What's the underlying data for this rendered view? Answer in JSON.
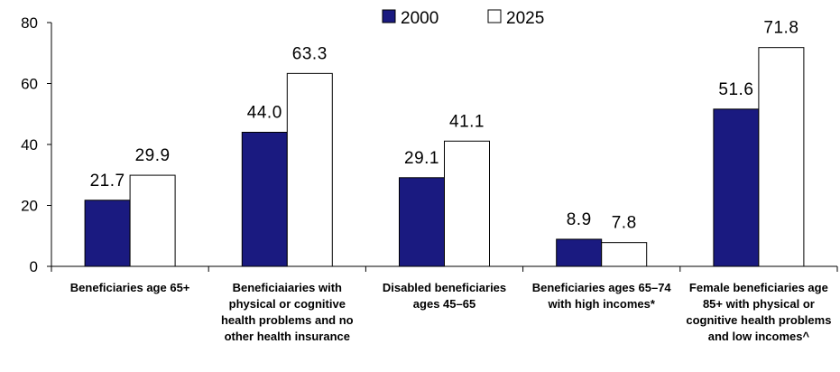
{
  "chart_data": {
    "type": "bar",
    "title": "",
    "xlabel": "",
    "ylabel": "",
    "ylim": [
      0,
      80
    ],
    "yticks": [
      0,
      20,
      40,
      60,
      80
    ],
    "categories": [
      "Beneficiaries age 65+",
      "Beneficiaiaries with physical or cognitive health problems and no other health insurance",
      "Disabled beneficiaries ages 45–65",
      "Beneficiaries ages 65–74 with high incomes*",
      "Female beneficiaries age 85+ with physical or cognitive health problems and low incomes^"
    ],
    "series": [
      {
        "name": "2000",
        "color": "#1a1a80",
        "values": [
          21.7,
          44.0,
          29.1,
          8.9,
          51.6
        ]
      },
      {
        "name": "2025",
        "color": "#ffffff",
        "values": [
          29.9,
          63.3,
          41.1,
          7.8,
          71.8
        ]
      }
    ],
    "legend": "top-center",
    "grid": false
  }
}
